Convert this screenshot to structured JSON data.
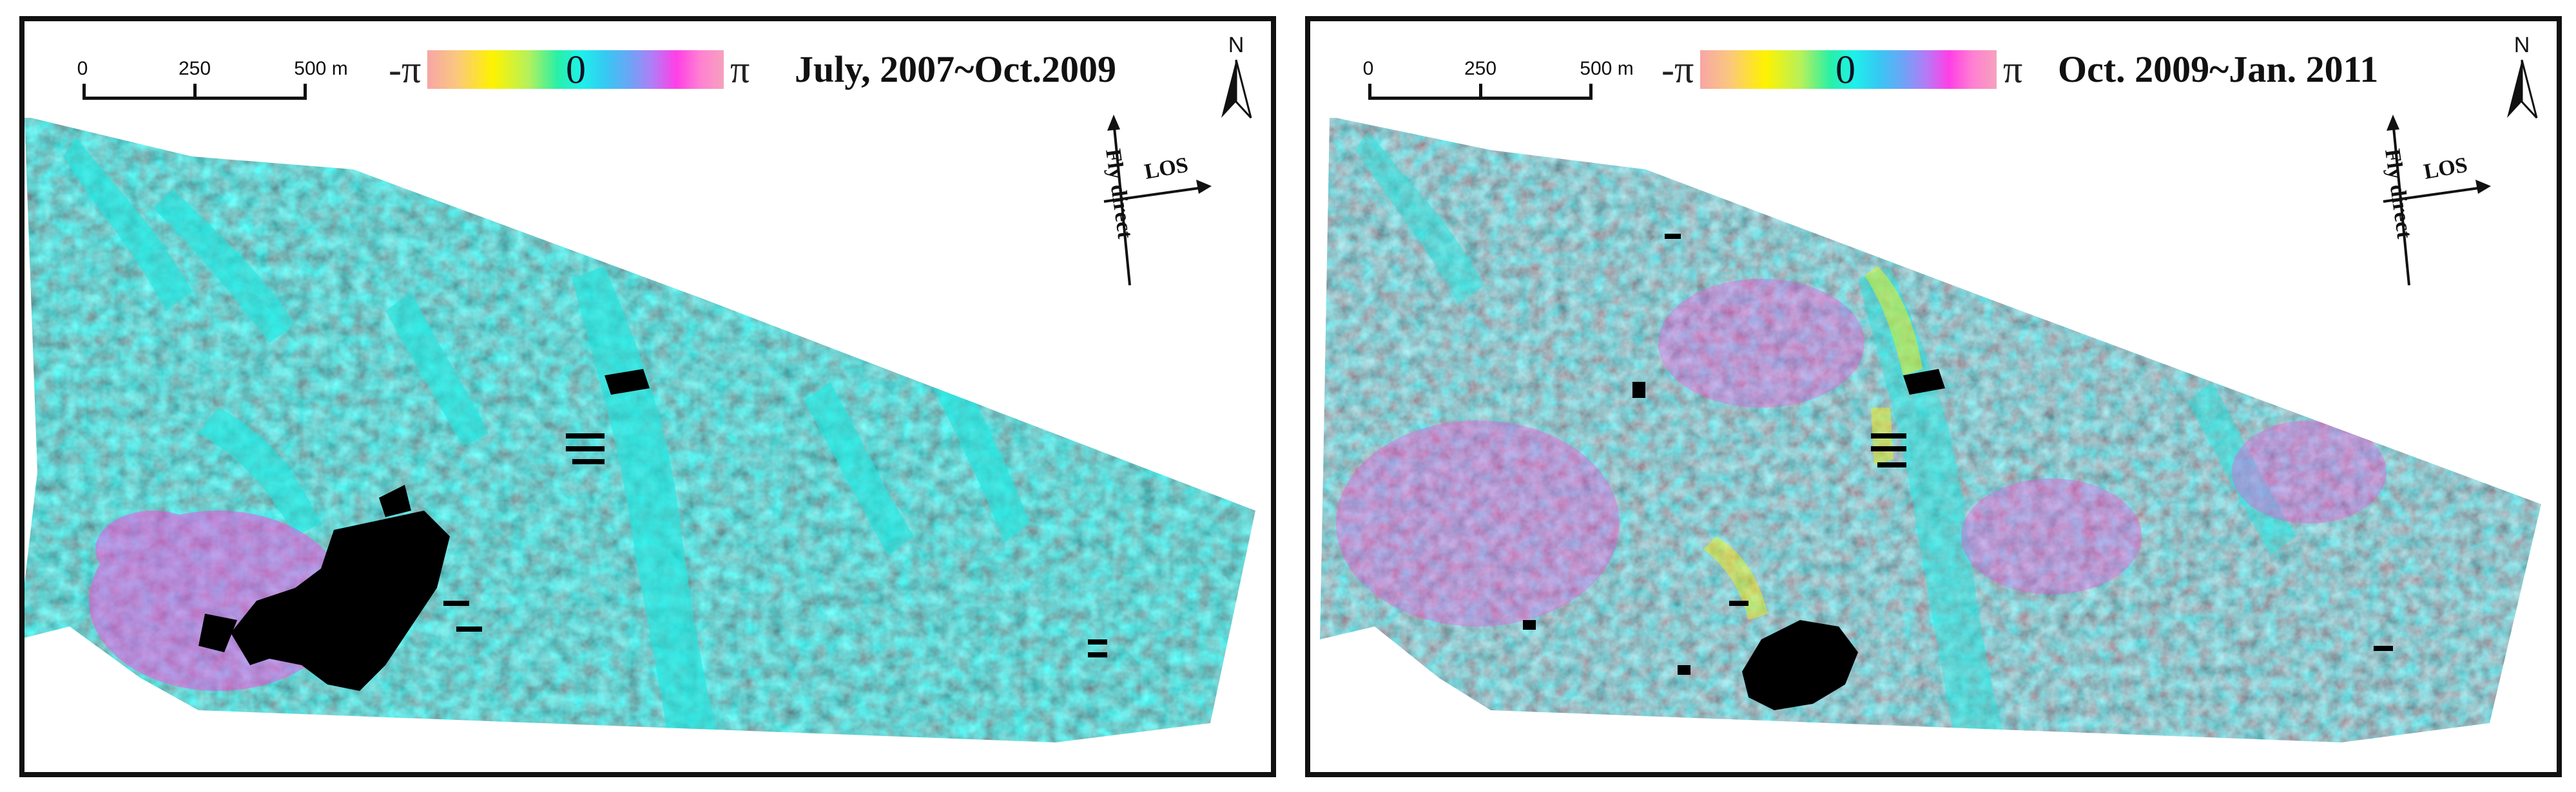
{
  "panels": [
    {
      "title": "July, 2007~Oct.2009",
      "scale_bar": {
        "labels": [
          "0",
          "250",
          "500 m"
        ]
      },
      "colorbar": {
        "min_label": "-π",
        "center_label": "0",
        "max_label": "π"
      },
      "north_label": "N",
      "orientation": {
        "los_label": "LOS",
        "flight_label": "Fly direct"
      }
    },
    {
      "title": "Oct. 2009~Jan. 2011",
      "scale_bar": {
        "labels": [
          "0",
          "250",
          "500 m"
        ]
      },
      "colorbar": {
        "min_label": "-π",
        "center_label": "0",
        "max_label": "π"
      },
      "north_label": "N",
      "orientation": {
        "los_label": "LOS",
        "flight_label": "Fly direct"
      }
    }
  ],
  "colors": {
    "background_phase": "#1c6e6e",
    "low_coherence_mask": "#000000",
    "frame": "#111111"
  }
}
